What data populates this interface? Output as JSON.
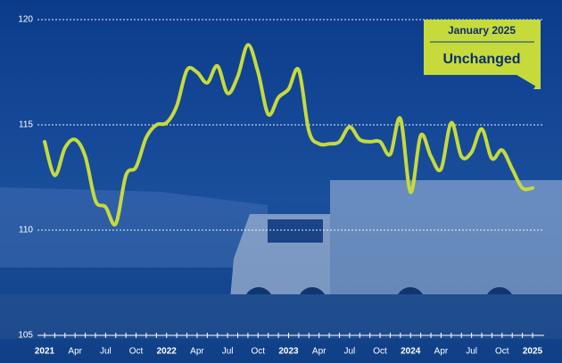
{
  "chart_data": {
    "type": "line",
    "categories": [
      "2021",
      null,
      null,
      "Apr",
      null,
      null,
      "Jul",
      null,
      null,
      "Oct",
      null,
      null,
      "2022",
      null,
      null,
      "Apr",
      null,
      null,
      "Jul",
      null,
      null,
      "Oct",
      null,
      null,
      "2023",
      null,
      null,
      "Apr",
      null,
      null,
      "Jul",
      null,
      null,
      "Oct",
      null,
      null,
      "2024",
      null,
      null,
      "Apr",
      null,
      null,
      "Jul",
      null,
      null,
      "Oct",
      null,
      null,
      "2025"
    ],
    "series": [
      {
        "color": "#c6da3c",
        "values": [
          114.2,
          112.6,
          113.9,
          114.3,
          113.5,
          111.4,
          111.1,
          110.3,
          112.6,
          113.0,
          114.4,
          115.0,
          115.1,
          115.9,
          117.6,
          117.5,
          117.0,
          117.8,
          116.5,
          117.3,
          118.8,
          117.5,
          115.5,
          116.3,
          116.7,
          117.6,
          114.7,
          114.1,
          114.1,
          114.2,
          114.9,
          114.3,
          114.2,
          114.2,
          113.6,
          115.3,
          111.8,
          114.5,
          113.5,
          112.9,
          115.1,
          113.5,
          113.7,
          114.8,
          113.4,
          113.8,
          112.9,
          112.0,
          112.0
        ]
      }
    ],
    "ylim": [
      105,
      120
    ],
    "yticks": [
      105,
      110,
      115,
      120
    ],
    "grid": true,
    "annotation": {
      "date": "January 2025",
      "text": "Unchanged",
      "color": "#c6da3c"
    }
  }
}
